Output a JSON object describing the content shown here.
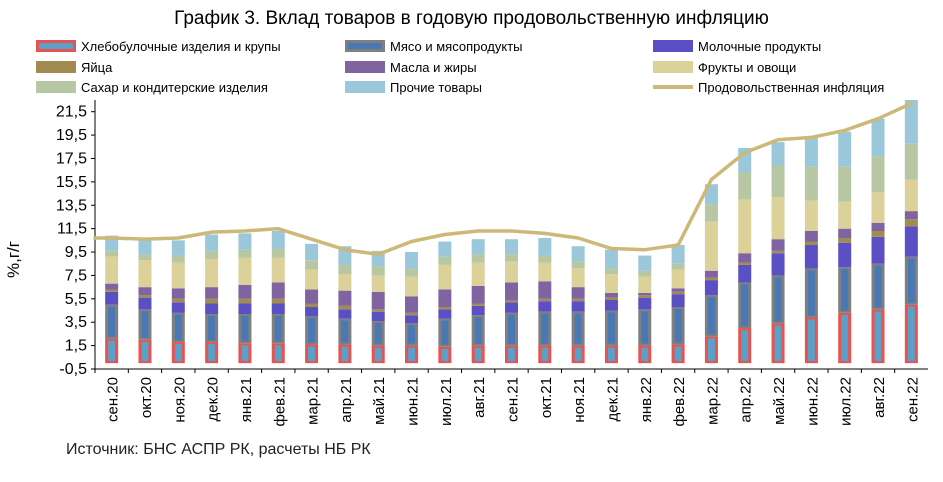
{
  "chart_data": {
    "type": "bar",
    "title": "График 3. Вклад товаров в годовую продовольственную инфляцию",
    "ylabel": "%,г/г",
    "xlabel": "",
    "ylim": [
      -0.5,
      22.5
    ],
    "yticks": [
      "-0,5",
      "1,5",
      "3,5",
      "5,5",
      "7,5",
      "9,5",
      "11,5",
      "13,5",
      "15,5",
      "17,5",
      "19,5",
      "21,5"
    ],
    "grid": false,
    "legend_position": "top",
    "categories": [
      "сен.20",
      "окт.20",
      "ноя.20",
      "дек.20",
      "янв.21",
      "фев.21",
      "мар.21",
      "апр.21",
      "май.21",
      "июн.21",
      "июл.21",
      "авг.21",
      "сен.21",
      "окт.21",
      "ноя.21",
      "дек.21",
      "янв.22",
      "фев.22",
      "мар.22",
      "апр.22",
      "май.22",
      "июн.22",
      "июл.22",
      "авг.22",
      "сен.22"
    ],
    "series": [
      {
        "name": "Хлебобулочные изделия и крупы",
        "color": "#e8524f",
        "inner": "#5ba0c8",
        "values": [
          2.1,
          2.0,
          1.8,
          1.8,
          1.7,
          1.7,
          1.6,
          1.6,
          1.5,
          1.5,
          1.4,
          1.5,
          1.5,
          1.5,
          1.5,
          1.5,
          1.5,
          1.6,
          2.3,
          3.0,
          3.4,
          3.9,
          4.3,
          4.6,
          5.0
        ]
      },
      {
        "name": "Мясо и мясопродукты",
        "color": "#7f7f7f",
        "inner": "#4a78b5",
        "values": [
          2.9,
          2.6,
          2.5,
          2.4,
          2.5,
          2.5,
          2.4,
          2.2,
          2.1,
          1.9,
          2.4,
          2.6,
          2.8,
          2.9,
          2.9,
          3.0,
          3.1,
          3.2,
          3.5,
          3.9,
          4.1,
          4.2,
          3.9,
          3.9,
          4.1
        ]
      },
      {
        "name": "Молочные продукты",
        "color": "#5b4fc4",
        "values": [
          1.1,
          1.0,
          0.9,
          0.9,
          0.9,
          0.9,
          0.8,
          0.8,
          0.8,
          0.7,
          0.8,
          0.8,
          0.9,
          0.9,
          0.9,
          0.9,
          1.0,
          1.1,
          1.3,
          1.5,
          1.9,
          2.0,
          2.1,
          2.3,
          2.6
        ]
      },
      {
        "name": "Яйца",
        "color": "#a08c4e",
        "values": [
          0.2,
          0.2,
          0.3,
          0.4,
          0.4,
          0.4,
          0.3,
          0.3,
          0.2,
          0.2,
          0.2,
          0.2,
          0.2,
          0.2,
          0.2,
          0.2,
          0.2,
          0.2,
          0.2,
          0.2,
          0.2,
          0.3,
          0.4,
          0.5,
          0.6
        ]
      },
      {
        "name": "Масла и жиры",
        "color": "#8064a2",
        "values": [
          0.5,
          0.7,
          0.9,
          1.0,
          1.2,
          1.4,
          1.2,
          1.3,
          1.5,
          1.4,
          1.5,
          1.5,
          1.5,
          1.5,
          1.0,
          0.4,
          0.2,
          0.3,
          0.6,
          0.8,
          1.0,
          0.9,
          0.8,
          0.7,
          0.7
        ]
      },
      {
        "name": "Фрукты и овощи",
        "color": "#ddd19a",
        "values": [
          2.3,
          2.3,
          2.2,
          2.4,
          2.3,
          2.1,
          1.7,
          1.4,
          1.4,
          1.7,
          2.1,
          2.0,
          1.8,
          1.6,
          1.6,
          1.6,
          1.4,
          1.6,
          4.2,
          4.6,
          3.6,
          2.6,
          2.3,
          2.6,
          2.7
        ]
      },
      {
        "name": "Сахар и кондитерские изделия",
        "color": "#b7c7a3",
        "values": [
          0.5,
          0.5,
          0.6,
          0.7,
          0.7,
          0.8,
          0.8,
          0.8,
          0.8,
          0.7,
          0.7,
          0.7,
          0.6,
          0.6,
          0.6,
          0.5,
          0.5,
          0.5,
          1.5,
          2.3,
          2.7,
          2.9,
          3.0,
          3.1,
          3.1
        ]
      },
      {
        "name": "Прочие товары",
        "color": "#9ac8da",
        "values": [
          1.3,
          1.3,
          1.3,
          1.4,
          1.4,
          1.5,
          1.4,
          1.6,
          1.3,
          1.4,
          1.3,
          1.3,
          1.3,
          1.5,
          1.3,
          1.6,
          1.3,
          1.6,
          1.7,
          2.1,
          2.0,
          2.5,
          3.0,
          3.2,
          3.7
        ]
      }
    ],
    "line": {
      "name": "Продовольственная инфляция",
      "color": "#cdb977",
      "values": [
        10.7,
        10.6,
        10.7,
        11.2,
        11.3,
        11.5,
        10.6,
        9.7,
        9.3,
        10.4,
        11.0,
        11.3,
        11.3,
        11.1,
        10.7,
        9.8,
        9.7,
        10.1,
        15.7,
        18.0,
        19.1,
        19.3,
        19.9,
        20.9,
        22.2
      ]
    }
  },
  "source": "Источник: БНС АСПР РК, расчеты НБ РК"
}
